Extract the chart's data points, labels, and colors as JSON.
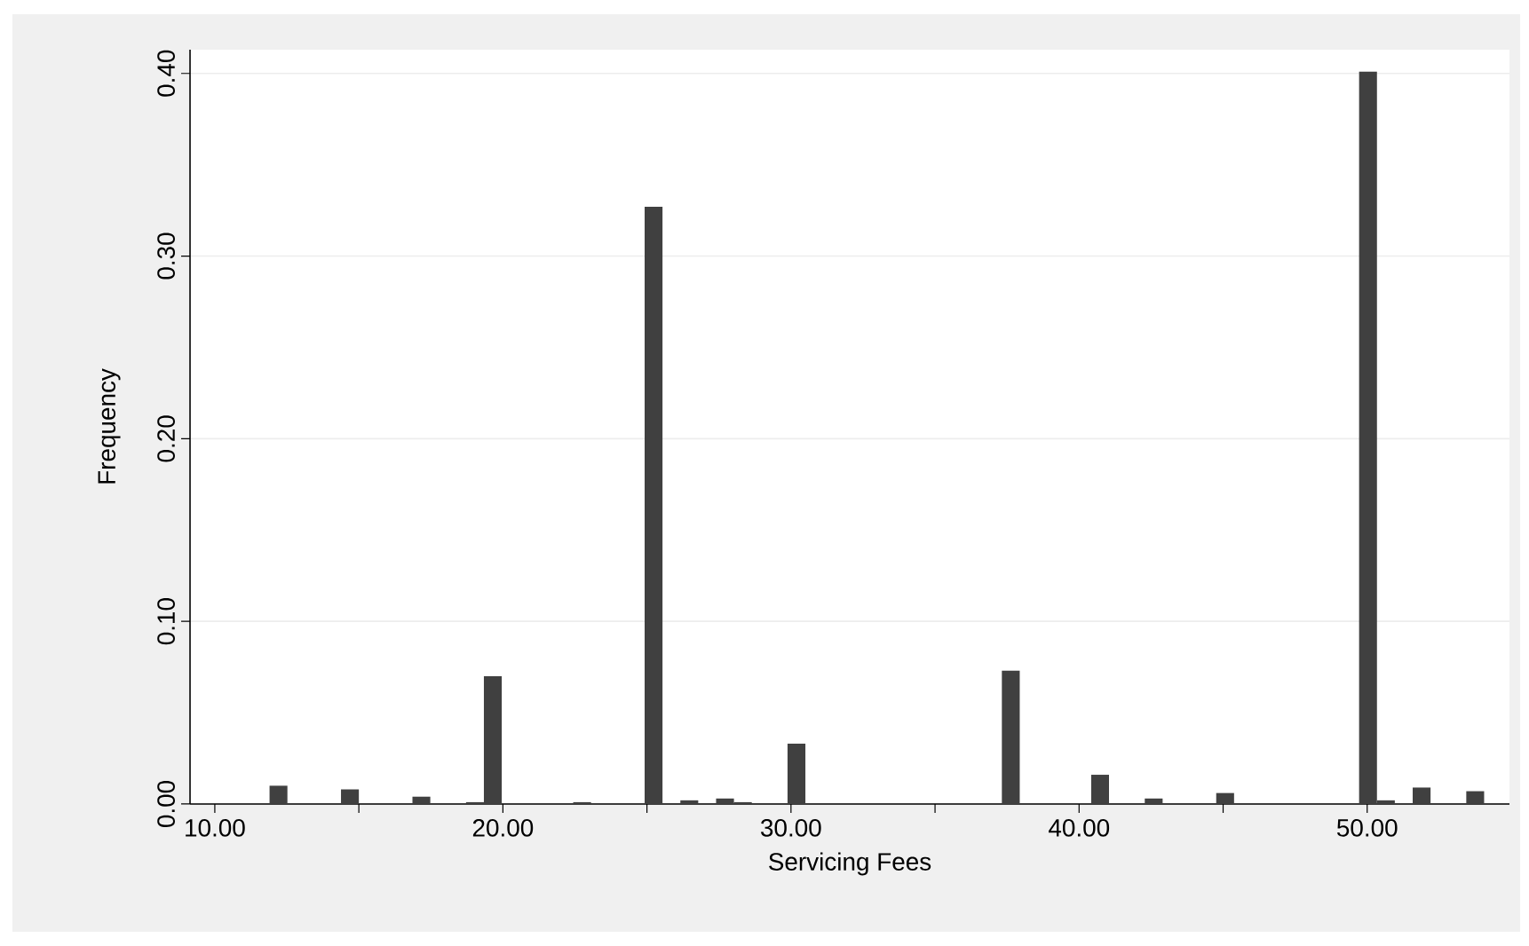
{
  "chart_data": {
    "type": "histogram",
    "xlabel": "Servicing Fees",
    "ylabel": "Frequency",
    "color": "#404040",
    "bins": [
      11.9,
      12.52,
      13.14,
      13.76,
      14.38,
      15,
      15.62,
      16.24,
      16.86,
      17.48,
      18.1,
      18.72,
      19.34,
      19.96,
      20.58,
      21.2,
      21.82,
      22.44,
      23.06,
      23.68,
      24.3,
      24.92,
      25.54,
      26.16,
      26.78,
      27.4,
      28.02,
      28.64,
      29.26,
      29.88,
      30.5,
      31.12,
      31.74,
      32.36,
      32.98,
      33.6,
      34.22,
      34.84,
      35.46,
      36.08,
      36.7,
      37.32,
      37.94,
      38.56,
      39.18,
      39.8,
      40.42,
      41.04,
      41.66,
      42.28,
      42.9,
      43.52,
      44.14,
      44.76,
      45.38,
      46,
      46.62,
      47.24,
      47.86,
      48.48,
      49.1,
      49.72,
      50.34,
      50.96,
      51.58,
      52.2,
      52.82,
      53.44,
      54.06
    ],
    "values": [
      0.01,
      0,
      0,
      0,
      0.008,
      0,
      0,
      0,
      0.004,
      0,
      0,
      0.001,
      0.07,
      0,
      0,
      0,
      0,
      0.001,
      0,
      0,
      0,
      0.327,
      0,
      0.002,
      0,
      0.003,
      0.001,
      0,
      0,
      0.033,
      0,
      0,
      0,
      0,
      0,
      0,
      0,
      0,
      0,
      0,
      0,
      0.073,
      0,
      0,
      0,
      0,
      0.016,
      0,
      0,
      0.003,
      0,
      0,
      0,
      0.006,
      0,
      0,
      0,
      0,
      0,
      0,
      0,
      0.401,
      0.002,
      0,
      0.009,
      0,
      0,
      0.007
    ],
    "xlim": [
      9.14,
      54.94
    ],
    "ylim": [
      0,
      0.413
    ],
    "xticks": [
      {
        "value": 10,
        "label": "10.00"
      },
      {
        "value": 15,
        "label": null
      },
      {
        "value": 20,
        "label": "20.00"
      },
      {
        "value": 25,
        "label": null
      },
      {
        "value": 30,
        "label": "30.00"
      },
      {
        "value": 35,
        "label": null
      },
      {
        "value": 40,
        "label": "40.00"
      },
      {
        "value": 45,
        "label": null
      },
      {
        "value": 50,
        "label": "50.00"
      }
    ],
    "yticks": [
      {
        "value": 0,
        "label": "0.00"
      },
      {
        "value": 0.1,
        "label": "0.10"
      },
      {
        "value": 0.2,
        "label": "0.20"
      },
      {
        "value": 0.3,
        "label": "0.30"
      },
      {
        "value": 0.4,
        "label": "0.40"
      }
    ],
    "grid": "y"
  }
}
